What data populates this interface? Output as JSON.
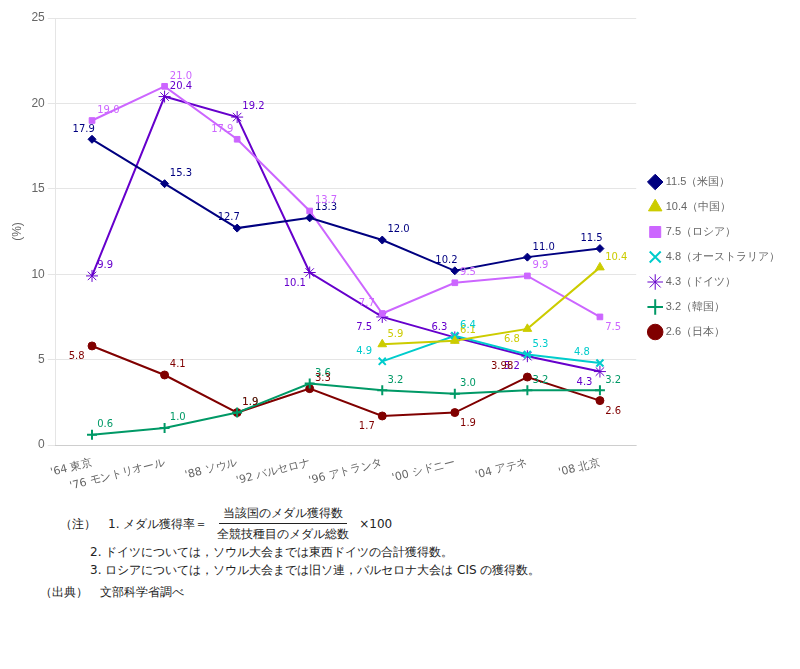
{
  "chart_data": {
    "type": "line",
    "categories": [
      "'64 東京",
      "'76 モントリオール",
      "'88 ソウル",
      "'92 バルセロナ",
      "'96 アトランタ",
      "'00 シドニー",
      "'04 アテネ",
      "'08 北京"
    ],
    "ylabel": "(%)",
    "ylim": [
      0,
      25
    ],
    "yticks": [
      0,
      5,
      10,
      15,
      20,
      25
    ],
    "grid": true,
    "legend": "right",
    "data_labels": true,
    "series": [
      {
        "name": "11.5（米国）",
        "color": "#000080",
        "marker": "diamond",
        "values": [
          17.9,
          15.3,
          12.7,
          13.3,
          12.0,
          10.2,
          11.0,
          11.5
        ],
        "value_labels": [
          "17.9",
          "15.3",
          "12.7",
          "13.3",
          "12.0",
          "10.2",
          "11.0",
          "11.5"
        ]
      },
      {
        "name": "10.4（中国）",
        "color": "#cccc00",
        "marker": "triangle",
        "values": [
          null,
          null,
          null,
          null,
          5.9,
          6.1,
          6.8,
          10.4
        ],
        "value_labels": [
          null,
          null,
          null,
          null,
          "5.9",
          "6.1",
          "6.8",
          "10.4"
        ]
      },
      {
        "name": "7.5（ロシア）",
        "color": "#cc66ff",
        "marker": "square",
        "values": [
          19.0,
          21.0,
          17.9,
          13.7,
          7.7,
          9.5,
          9.9,
          7.5
        ],
        "value_labels": [
          "19.0",
          "21.0",
          "17.9",
          "13.7",
          "7.7",
          "9.5",
          "9.9",
          "7.5"
        ]
      },
      {
        "name": "4.8（オーストラリア）",
        "color": "#00cccc",
        "marker": "x",
        "values": [
          null,
          null,
          null,
          null,
          4.9,
          6.4,
          5.3,
          4.8
        ],
        "value_labels": [
          null,
          null,
          null,
          null,
          "4.9",
          "6.4",
          "5.3",
          "4.8"
        ]
      },
      {
        "name": "4.3（ドイツ）",
        "color": "#6600cc",
        "marker": "star",
        "values": [
          9.9,
          20.4,
          19.2,
          10.1,
          7.5,
          6.3,
          5.2,
          4.3
        ],
        "value_labels": [
          "9.9",
          "20.4",
          "19.2",
          "10.1",
          "7.5",
          "6.3",
          "5.2",
          "4.3"
        ]
      },
      {
        "name": "3.2（韓国）",
        "color": "#009966",
        "marker": "plus",
        "values": [
          0.6,
          1.0,
          1.9,
          3.6,
          3.2,
          3.0,
          3.2,
          3.2
        ],
        "value_labels": [
          "0.6",
          "1.0",
          "1.9",
          "3.6",
          "3.2",
          "3.0",
          "3.2",
          "3.2"
        ]
      },
      {
        "name": "2.6（日本）",
        "color": "#800000",
        "marker": "circle",
        "values": [
          5.8,
          4.1,
          1.9,
          3.3,
          1.7,
          1.9,
          3.98,
          2.6
        ],
        "value_labels": [
          "5.8",
          "4.1",
          "1.9",
          "3.3",
          "1.7",
          "1.9",
          "3.98",
          "2.6"
        ]
      }
    ],
    "annotations": [
      "（注）　1. メダル獲得率＝",
      "当該国のメダル獲得数",
      "全競技種目のメダル総数",
      "×100",
      "2. ドイツについては，ソウル大会までは東西ドイツの合計獲得数。",
      "3. ロシアについては，ソウル大会までは旧ソ連，バルセロナ大会は CIS の獲得数。",
      "（出典）　文部科学省調べ"
    ]
  }
}
